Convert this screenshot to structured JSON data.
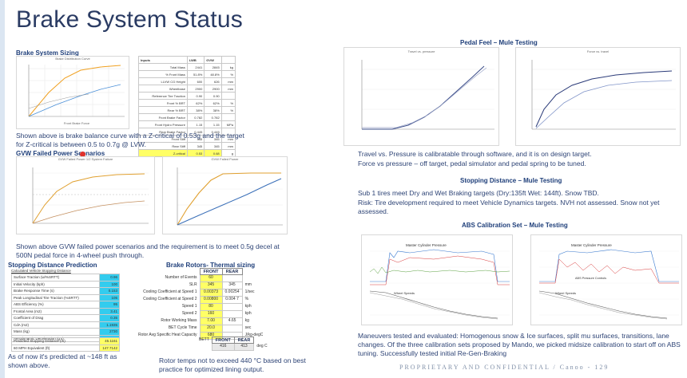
{
  "title": "Brake System Status",
  "left": {
    "sizing": {
      "heading": "Brake System Sizing",
      "chart_title": "Brake Distribution Curve",
      "chart_xlabel": "Front Brake Force",
      "table_header": [
        "Inputs",
        "LWB",
        "GVW",
        ""
      ],
      "table_rows": [
        [
          "Total Mass",
          "2441",
          "2845",
          "kg"
        ],
        [
          "% Front Mass",
          "51.8%",
          "48.8%",
          "%"
        ],
        [
          "LLVW CG Height",
          "600",
          "626",
          "mm"
        ],
        [
          "Wheelbase",
          "2900",
          "2900",
          "mm"
        ],
        [
          "Reference Tire Traction",
          "0.90",
          "0.90",
          ""
        ],
        [
          "Front % BRT",
          "62%",
          "62%",
          "%"
        ],
        [
          "Rear % BRT",
          "38%",
          "38%",
          "%"
        ],
        [
          "Front Brake Factor",
          "0.782",
          "0.782",
          ""
        ],
        [
          "Front Hydro Pressure",
          "1.15",
          "1.15",
          "MPa"
        ],
        [
          "Rear Brake Factor",
          "0.445",
          "0.445",
          ""
        ],
        [
          "Front Stiff",
          "345",
          "345",
          "mm"
        ],
        [
          "Rear Stiff",
          "345",
          "345",
          "mm"
        ],
        [
          "Z-critical",
          "0.53",
          "0.68",
          "g"
        ]
      ],
      "caption": "Shown above is brake balance curve with a Z-critical of 0.53g and the target for Z-critical is between 0.5 to 0.7g @ LVW."
    },
    "gvw": {
      "heading": "GVW Failed Power Scenarios",
      "chart1_title": "GVW Failed Power 1/2 System Failure",
      "chart2_title": "GVW Failed Power",
      "caption": "Shown above GVW failed power scenarios and the requirement is to meet 0.5g decel at 500N pedal force in 4-wheel push through."
    },
    "stopping": {
      "heading": "Stopping Distance Prediction",
      "table_caption": "Calculated Vehicle Stopping Distance",
      "rows": [
        [
          "Surface Traction (w/%SRTT)",
          "0.96"
        ],
        [
          "Initial Velocity (kph)",
          "100"
        ],
        [
          "Brake Response Time (s)",
          "0.153"
        ],
        [
          "Peak Longitudinal Tire Traction (%SRTT)",
          "105"
        ],
        [
          "ABS Efficiency (%)",
          "95"
        ],
        [
          "Frontal Area (m2)",
          "3.41"
        ],
        [
          "Coefficient of Drag",
          "0.35"
        ],
        [
          "CdA (m2)",
          "1.1935"
        ],
        [
          "Mass (kg)",
          "2730"
        ],
        [
          "Aerodynamic Deceleration (g's)",
          "0.029056"
        ]
      ],
      "result_rows": [
        [
          "Predicted Stopping Distance (m)",
          "45.1161"
        ],
        [
          "60 MPH Equivalent (ft)",
          "147.7142"
        ]
      ],
      "caption": "As of now it's predicted at ~148 ft as shown above."
    },
    "rotors": {
      "heading": "Brake Rotors- Thermal sizing",
      "col_front": "FRONT",
      "col_rear": "REAR",
      "rows": [
        [
          "Number of Events",
          "60",
          "",
          ""
        ],
        [
          "SLR",
          "345",
          "345",
          "mm"
        ],
        [
          "Cooling Coefficient at Speed 1",
          "0.00373",
          "0.00254",
          "1/sec"
        ],
        [
          "Cooling Coefficient at Speed 2",
          "0.00800",
          "0.004 7",
          "%"
        ],
        [
          "Speed 1",
          "80",
          "",
          "kph"
        ],
        [
          "Speed 2",
          "160",
          "",
          "kph"
        ],
        [
          "Rotor Working Mass",
          "7.00",
          "4.65",
          "kg"
        ],
        [
          "BET Cycle Time",
          "20.0",
          "",
          "sec"
        ],
        [
          "Rotor Avg Specific Heat Capacity",
          "680",
          "",
          "J/kg-degC"
        ]
      ],
      "bet_label": "BETT",
      "bet_front": "416",
      "bet_rear": "413",
      "bet_unit": "deg C",
      "caption": "Rotor temps not to exceed 440 °C based on best practice for optimized lining output."
    }
  },
  "right": {
    "pedal": {
      "heading": "Pedal Feel – Mule Testing",
      "chart1_title": "Travel vs. pressure",
      "chart2_title": "Force vs. travel",
      "caption1": "Travel vs. Pressure is calibratable through software, and it is on design target.",
      "caption2": "Force vs pressure – off target, pedal simulator and pedal spring to be tuned."
    },
    "stopping": {
      "heading": "Stopping Distance – Mule Testing",
      "line1": "Sub 1 tires meet Dry and Wet Braking targets (Dry:135ft Wet: 144ft). Snow TBD.",
      "line2": "Risk: Tire development required to meet Vehicle Dynamics targets. NVH not assessed. Snow not yet assessed."
    },
    "abs": {
      "heading": "ABS Calibration Set – Mule Testing",
      "chart1_label": "Master Cylinder Pressure",
      "chart1_label2": "Wheel Speeds",
      "chart2_label": "Master Cylinder Pressure",
      "chart2_label2": "ABS Pressure Controls",
      "chart2_label3": "Wheel Speeds",
      "caption": "Maneuvers tested and evaluated: Homogenous snow & Ice surfaces, split mu surfaces, transitions, lane changes. Of the three calibration sets proposed by Mando, we picked midsize calibration to start off on ABS tuning. Successfully tested initial Re-Gen-Braking"
    }
  },
  "footer": "PROPRIETARY AND CONFIDENTIAL  /  Canoo  -  129",
  "colors": {
    "title": "#2a3b63",
    "body": "#2e4476",
    "heading": "#1f3f7a",
    "cyan": "#33ccee",
    "yellow": "#ffff66"
  }
}
